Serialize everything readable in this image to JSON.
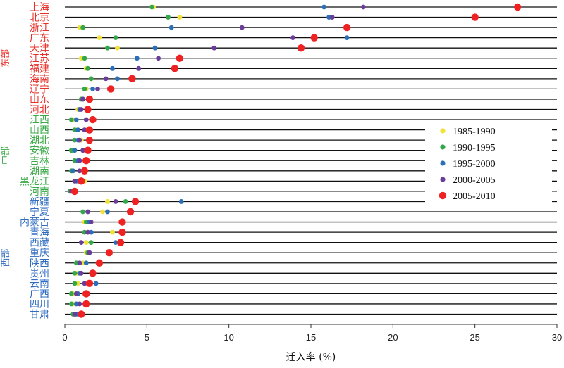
{
  "chart_data": {
    "type": "scatter",
    "xlabel": "迁入率 (%)",
    "xlim": [
      0,
      30
    ],
    "xticks": [
      0,
      5,
      10,
      15,
      20,
      25,
      30
    ],
    "grid": "horizontal row lines",
    "legend_position": "right",
    "series": [
      {
        "name": "1985-1990",
        "color": "#f1e23a"
      },
      {
        "name": "1990-1995",
        "color": "#33a84a"
      },
      {
        "name": "1995-2000",
        "color": "#2a6fb8"
      },
      {
        "name": "2000-2005",
        "color": "#6a3d9a"
      },
      {
        "name": "2005-2010",
        "color": "#ee2222"
      }
    ],
    "groups": [
      {
        "name": "东部",
        "color": "#e8302a"
      },
      {
        "name": "中部",
        "color": "#3aaa48"
      },
      {
        "name": "西部",
        "color": "#2f6cc0"
      }
    ],
    "provinces": [
      {
        "name": "上海",
        "group": "东部",
        "values": [
          5.4,
          5.3,
          15.8,
          18.2,
          27.6
        ]
      },
      {
        "name": "北京",
        "group": "东部",
        "values": [
          7.0,
          6.3,
          16.1,
          16.3,
          25.0
        ]
      },
      {
        "name": "浙江",
        "group": "东部",
        "values": [
          0.9,
          1.1,
          6.5,
          10.8,
          17.2
        ]
      },
      {
        "name": "广东",
        "group": "东部",
        "values": [
          2.1,
          3.1,
          17.2,
          13.9,
          15.2
        ]
      },
      {
        "name": "天津",
        "group": "东部",
        "values": [
          3.2,
          2.6,
          5.5,
          9.1,
          14.4
        ]
      },
      {
        "name": "江苏",
        "group": "东部",
        "values": [
          1.0,
          1.2,
          4.4,
          5.7,
          7.0
        ]
      },
      {
        "name": "福建",
        "group": "东部",
        "values": [
          1.3,
          1.4,
          2.9,
          4.5,
          6.7
        ]
      },
      {
        "name": "海南",
        "group": "东部",
        "values": [
          1.6,
          1.6,
          3.2,
          2.5,
          4.1
        ]
      },
      {
        "name": "辽宁",
        "group": "东部",
        "values": [
          1.3,
          1.2,
          1.7,
          2.0,
          2.8
        ]
      },
      {
        "name": "山东",
        "group": "东部",
        "values": [
          1.0,
          1.0,
          1.1,
          1.1,
          1.5
        ]
      },
      {
        "name": "河北",
        "group": "东部",
        "values": [
          0.8,
          0.9,
          0.9,
          1.0,
          1.4
        ]
      },
      {
        "name": "江西",
        "group": "中部",
        "values": [
          0.5,
          0.4,
          0.7,
          1.3,
          1.7
        ]
      },
      {
        "name": "山西",
        "group": "中部",
        "values": [
          0.7,
          0.6,
          0.8,
          1.2,
          1.5
        ]
      },
      {
        "name": "湖北",
        "group": "中部",
        "values": [
          1.0,
          0.6,
          0.8,
          0.9,
          1.5
        ]
      },
      {
        "name": "安徽",
        "group": "中部",
        "values": [
          0.5,
          0.4,
          0.6,
          1.1,
          1.4
        ]
      },
      {
        "name": "吉林",
        "group": "中部",
        "values": [
          0.6,
          0.6,
          0.8,
          0.9,
          1.3
        ]
      },
      {
        "name": "湖南",
        "group": "中部",
        "values": [
          0.4,
          0.4,
          0.5,
          0.9,
          1.2
        ]
      },
      {
        "name": "黑龙江",
        "group": "中部",
        "values": [
          1.2,
          0.6,
          0.7,
          0.6,
          1.0
        ]
      },
      {
        "name": "河南",
        "group": "中部",
        "values": [
          0.4,
          0.3,
          0.4,
          0.4,
          0.6
        ]
      },
      {
        "name": "新疆",
        "group": "西部",
        "values": [
          2.6,
          3.7,
          7.1,
          3.1,
          4.3
        ]
      },
      {
        "name": "宁夏",
        "group": "西部",
        "values": [
          2.3,
          1.1,
          2.6,
          1.4,
          4.0
        ]
      },
      {
        "name": "内蒙古",
        "group": "西部",
        "values": [
          1.2,
          1.3,
          1.5,
          1.6,
          3.5
        ]
      },
      {
        "name": "青海",
        "group": "西部",
        "values": [
          2.9,
          1.2,
          1.6,
          1.4,
          3.5
        ]
      },
      {
        "name": "西藏",
        "group": "西部",
        "values": [
          1.3,
          1.6,
          3.1,
          1.0,
          3.4
        ]
      },
      {
        "name": "重庆",
        "group": "西部",
        "values": [
          1.3,
          1.4,
          1.5,
          1.5,
          2.7
        ]
      },
      {
        "name": "陕西",
        "group": "西部",
        "values": [
          1.1,
          0.7,
          1.3,
          0.9,
          2.1
        ]
      },
      {
        "name": "贵州",
        "group": "西部",
        "values": [
          0.7,
          0.6,
          0.9,
          1.0,
          1.7
        ]
      },
      {
        "name": "云南",
        "group": "西部",
        "values": [
          0.8,
          0.6,
          1.9,
          1.2,
          1.5
        ]
      },
      {
        "name": "广西",
        "group": "西部",
        "values": [
          0.5,
          0.4,
          0.8,
          0.7,
          1.3
        ]
      },
      {
        "name": "四川",
        "group": "西部",
        "values": [
          0.5,
          0.4,
          0.7,
          0.9,
          1.3
        ]
      },
      {
        "name": "甘肃",
        "group": "西部",
        "values": [
          0.6,
          0.5,
          0.7,
          0.6,
          1.0
        ]
      }
    ]
  }
}
